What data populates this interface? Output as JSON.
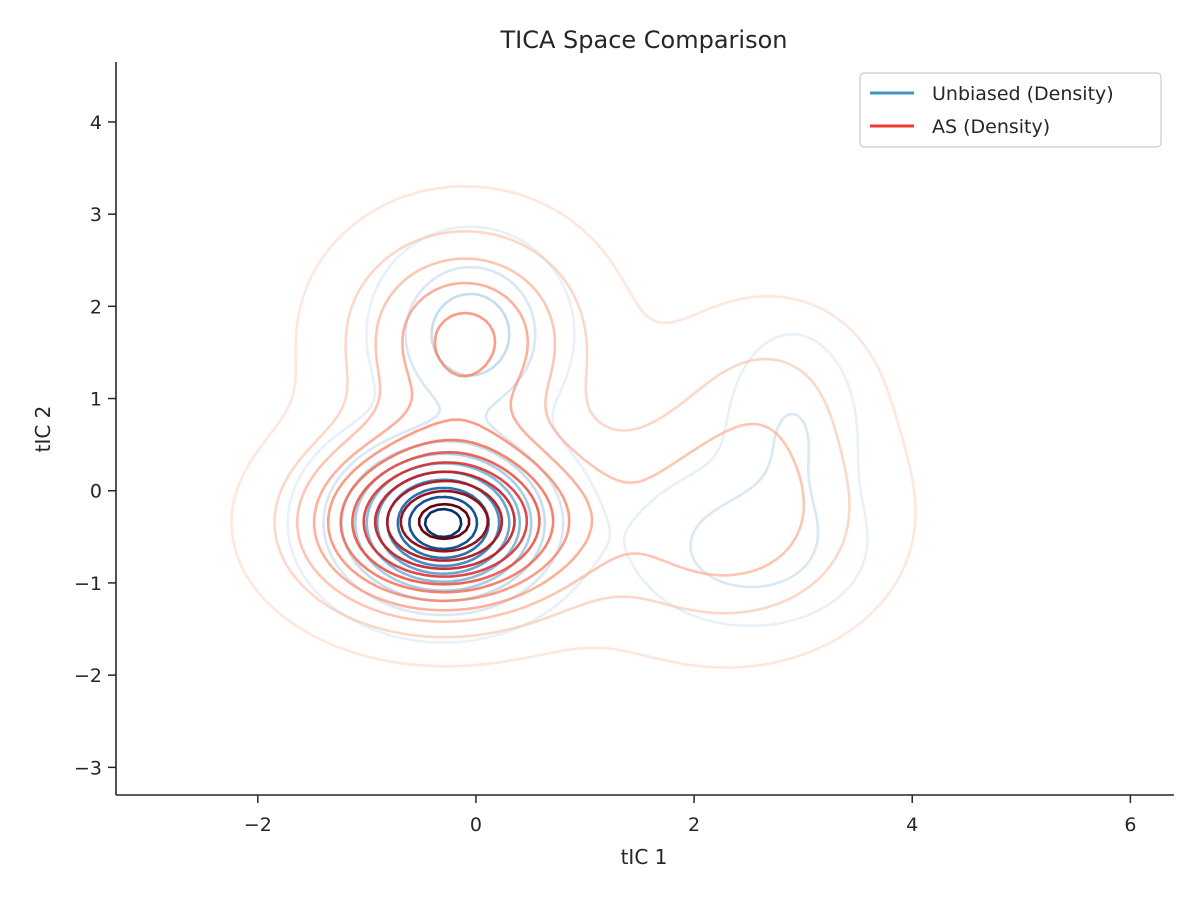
{
  "chart_data": {
    "type": "contour",
    "title": "TICA Space Comparison",
    "xlabel": "tIC 1",
    "ylabel": "tIC 2",
    "xlim": [
      -3.3,
      6.4
    ],
    "ylim": [
      -3.3,
      4.65
    ],
    "xticks": [
      -2,
      0,
      2,
      4,
      6
    ],
    "yticks": [
      -3,
      -2,
      -1,
      0,
      1,
      2,
      3,
      4
    ],
    "xtick_labels": [
      "−2",
      "0",
      "2",
      "4",
      "6"
    ],
    "ytick_labels": [
      "−3",
      "−2",
      "−1",
      "0",
      "1",
      "2",
      "3",
      "4"
    ],
    "grid": false,
    "legend_position": "top-right",
    "series": [
      {
        "name": "Unbiased (Density)",
        "legend_color": "#4292c6",
        "colormap": "Blues",
        "components": [
          {
            "weight": 0.55,
            "center": [
              -0.3,
              -0.35
            ],
            "sigma": [
              0.55,
              0.5
            ]
          },
          {
            "weight": 0.18,
            "center": [
              -0.05,
              1.7
            ],
            "sigma": [
              0.45,
              0.55
            ]
          },
          {
            "weight": 0.12,
            "center": [
              2.5,
              -0.6
            ],
            "sigma": [
              0.55,
              0.45
            ]
          },
          {
            "weight": 0.08,
            "center": [
              2.9,
              0.6
            ],
            "sigma": [
              0.35,
              0.65
            ]
          }
        ],
        "level_count": 10
      },
      {
        "name": "AS (Density)",
        "legend_color": "#ef3b2c",
        "colormap": "Reds",
        "components": [
          {
            "weight": 0.55,
            "center": [
              -0.3,
              -0.35
            ],
            "sigma": [
              0.75,
              0.6
            ]
          },
          {
            "weight": 0.22,
            "center": [
              -0.1,
              1.65
            ],
            "sigma": [
              0.7,
              0.75
            ]
          },
          {
            "weight": 0.15,
            "center": [
              2.3,
              -0.3
            ],
            "sigma": [
              0.85,
              0.8
            ]
          },
          {
            "weight": 0.06,
            "center": [
              2.7,
              1.1
            ],
            "sigma": [
              0.6,
              0.65
            ]
          }
        ],
        "level_count": 12
      }
    ]
  }
}
